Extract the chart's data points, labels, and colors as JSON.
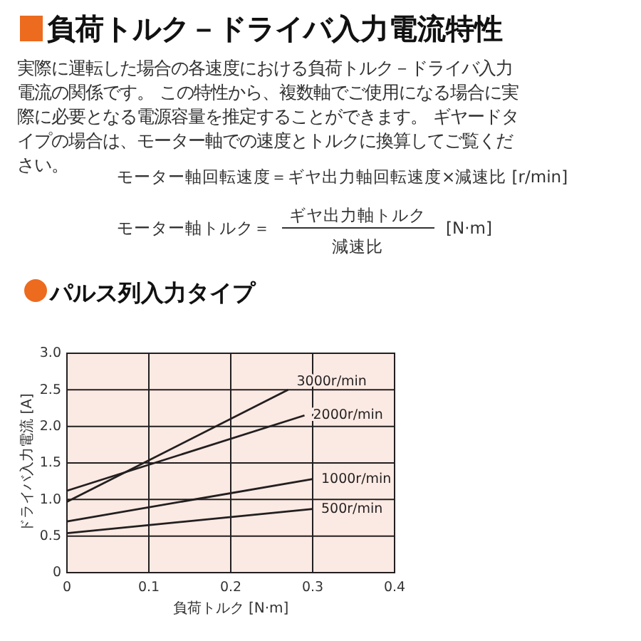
{
  "chart_data": {
    "type": "line",
    "title": "負荷トルク－ドライバ入力電流特性",
    "subtitle": "パルス列入力タイプ",
    "annotations": [
      "実際に運転した場合の各速度における負荷トルク－ドライバ入力",
      "電流の関係です。 この特性から、複数軸でご使用になる場合に実",
      "際に必要となる電源容量を推定することができます。 ギヤードタ",
      "イプの場合は、モーター軸での速度とトルクに換算してご覧くだ",
      "さい。",
      "モーター軸回転速度＝ギヤ出力軸回転速度×減速比 [r/min]",
      "モーター軸トルク＝",
      "ギヤ出力軸トルク",
      "減速比",
      "[N·m]"
    ],
    "xlabel": "負荷トルク [N·m]",
    "ylabel": "ドライバ入力電流 [A]",
    "xlim": [
      0,
      0.4
    ],
    "xticks": [
      0,
      0.1,
      0.2,
      0.3,
      0.4
    ],
    "ylim": [
      0,
      3
    ],
    "yticks": [
      0,
      {
        "value": 0.5,
        "label": "0.5"
      },
      {
        "value": 1,
        "label": "1.0"
      },
      {
        "value": 1.5,
        "label": "1.5"
      },
      {
        "value": 2,
        "label": "2.0"
      },
      {
        "value": 2.5,
        "label": "2.5"
      },
      {
        "value": 3,
        "label": "3.0"
      }
    ],
    "grid": true,
    "marker": "none",
    "line_style": "solid",
    "series": [
      {
        "name": "3000r/min",
        "color": "#231f20",
        "x": [
          0,
          0.27
        ],
        "values": [
          0.97,
          2.5
        ]
      },
      {
        "name": "2000r/min",
        "color": "#231f20",
        "x": [
          0,
          0.29
        ],
        "values": [
          1.12,
          2.15
        ]
      },
      {
        "name": "1000r/min",
        "color": "#231f20",
        "x": [
          0,
          0.3
        ],
        "values": [
          0.7,
          1.28
        ]
      },
      {
        "name": "500r/min",
        "color": "#231f20",
        "x": [
          0,
          0.3
        ],
        "values": [
          0.54,
          0.87
        ]
      }
    ]
  }
}
